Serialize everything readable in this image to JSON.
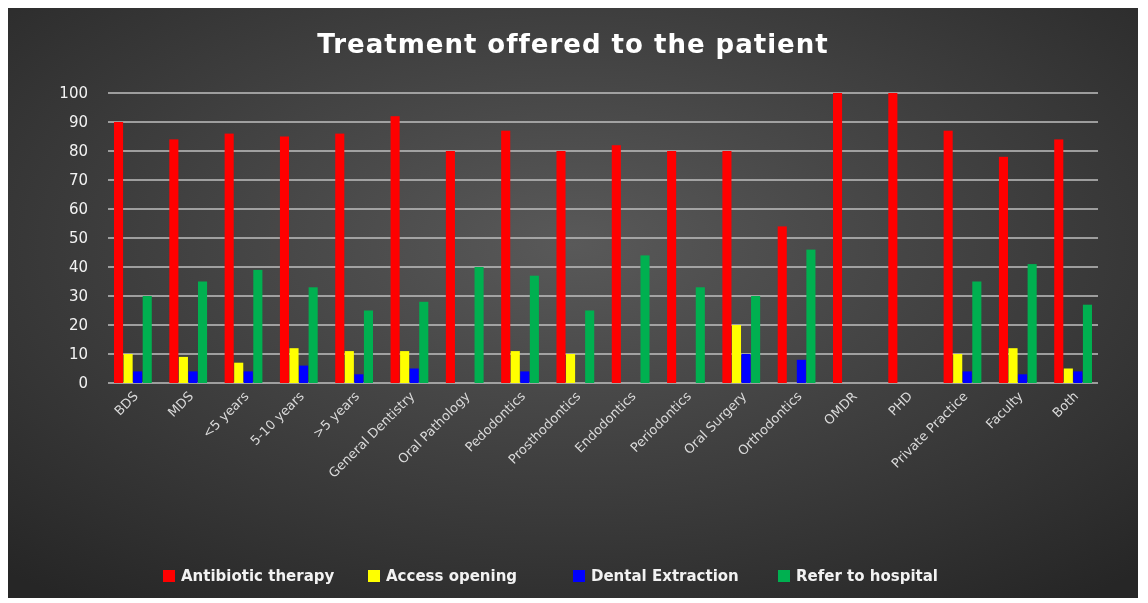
{
  "chart_data": {
    "type": "bar",
    "title": "Treatment offered to the patient",
    "categories": [
      "BDS",
      "MDS",
      "<5 years",
      "5-10 years",
      ">5 years",
      "General Dentistry",
      "Oral Pathology",
      "Pedodontics",
      "Prosthodontics",
      "Endodontics",
      "Periodontics",
      "Oral Surgery",
      "Orthodontics",
      "OMDR",
      "PHD",
      "Private Practice",
      "Faculty",
      "Both"
    ],
    "series": [
      {
        "name": "Antibiotic therapy",
        "color": "#ff0000",
        "values": [
          90,
          84,
          86,
          85,
          86,
          92,
          80,
          87,
          80,
          82,
          80,
          80,
          54,
          100,
          100,
          87,
          78,
          84
        ]
      },
      {
        "name": "Access opening",
        "color": "#ffff00",
        "values": [
          10,
          9,
          7,
          12,
          11,
          11,
          0,
          11,
          10,
          0,
          0,
          20,
          0,
          0,
          0,
          10,
          12,
          5
        ]
      },
      {
        "name": "Dental Extraction",
        "color": "#0000ff",
        "values": [
          4,
          4,
          4,
          6,
          3,
          5,
          0,
          4,
          0,
          0,
          0,
          10,
          8,
          0,
          0,
          4,
          3,
          4
        ]
      },
      {
        "name": "Refer to hospital",
        "color": "#00b050",
        "values": [
          30,
          35,
          39,
          33,
          25,
          28,
          40,
          37,
          25,
          44,
          33,
          30,
          46,
          0,
          0,
          35,
          41,
          27
        ]
      }
    ],
    "ylim": [
      0,
      100
    ],
    "yticks": [
      0,
      10,
      20,
      30,
      40,
      50,
      60,
      70,
      80,
      90,
      100
    ],
    "grid": "y",
    "legend": "bottom"
  }
}
